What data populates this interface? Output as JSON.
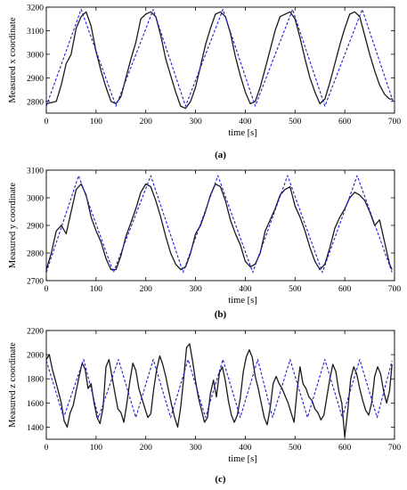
{
  "colors": {
    "measured": "#1a1a1a",
    "reference": "#1f1fd6"
  },
  "chart_data": [
    {
      "type": "line",
      "panel_label": "(a)",
      "xlabel": "time [s]",
      "ylabel": "Measured x coordinate",
      "xlim": [
        0,
        700
      ],
      "ylim": [
        2750,
        3200
      ],
      "xticks": [
        0,
        100,
        200,
        300,
        400,
        500,
        600,
        700
      ],
      "yticks": [
        2800,
        2900,
        3000,
        3100,
        3200
      ],
      "grid": false,
      "series": [
        {
          "style": "solid",
          "color": "#1a1a1a",
          "x": [
            0,
            10,
            20,
            30,
            40,
            50,
            60,
            70,
            80,
            90,
            100,
            110,
            120,
            130,
            140,
            150,
            160,
            170,
            180,
            190,
            200,
            210,
            220,
            230,
            240,
            250,
            260,
            270,
            280,
            290,
            300,
            310,
            320,
            330,
            340,
            350,
            360,
            370,
            380,
            390,
            400,
            410,
            420,
            430,
            440,
            450,
            460,
            470,
            480,
            490,
            500,
            510,
            520,
            530,
            540,
            550,
            560,
            570,
            580,
            590,
            600,
            610,
            620,
            630,
            640,
            650,
            660,
            670,
            680,
            690,
            697
          ],
          "y": [
            2790,
            2795,
            2800,
            2870,
            2960,
            3000,
            3110,
            3160,
            3180,
            3120,
            3010,
            2930,
            2860,
            2800,
            2790,
            2820,
            2900,
            2980,
            3050,
            3150,
            3170,
            3180,
            3160,
            3080,
            2980,
            2910,
            2840,
            2780,
            2770,
            2800,
            2860,
            2950,
            3040,
            3110,
            3170,
            3180,
            3160,
            3090,
            2990,
            2910,
            2840,
            2790,
            2800,
            2860,
            2940,
            3020,
            3100,
            3160,
            3170,
            3180,
            3150,
            3070,
            2980,
            2900,
            2840,
            2790,
            2810,
            2880,
            2960,
            3040,
            3110,
            3170,
            3180,
            3160,
            3080,
            3000,
            2930,
            2870,
            2830,
            2810,
            2810
          ]
        },
        {
          "style": "dashed",
          "color": "#1f1fd6",
          "x": [
            0,
            70,
            140,
            215,
            280,
            355,
            420,
            495,
            560,
            635,
            697
          ],
          "y": [
            2780,
            3190,
            2780,
            3190,
            2780,
            3190,
            2780,
            3190,
            2780,
            3190,
            2800
          ]
        }
      ]
    },
    {
      "type": "line",
      "panel_label": "(b)",
      "xlabel": "time [s]",
      "ylabel": "Measured y coordinate",
      "xlim": [
        0,
        700
      ],
      "ylim": [
        2700,
        3100
      ],
      "xticks": [
        0,
        100,
        200,
        300,
        400,
        500,
        600,
        700
      ],
      "yticks": [
        2700,
        2800,
        2900,
        3000,
        3100
      ],
      "grid": false,
      "series": [
        {
          "style": "solid",
          "color": "#1a1a1a",
          "x": [
            0,
            10,
            20,
            30,
            40,
            50,
            60,
            70,
            80,
            90,
            100,
            110,
            120,
            130,
            140,
            150,
            160,
            170,
            180,
            190,
            200,
            210,
            220,
            230,
            240,
            250,
            260,
            270,
            280,
            290,
            300,
            310,
            320,
            330,
            340,
            350,
            360,
            370,
            380,
            390,
            400,
            410,
            420,
            430,
            440,
            450,
            460,
            470,
            480,
            490,
            500,
            510,
            520,
            530,
            540,
            550,
            560,
            570,
            580,
            590,
            600,
            610,
            620,
            630,
            640,
            650,
            660,
            670,
            680,
            690,
            695
          ],
          "y": [
            2740,
            2800,
            2880,
            2900,
            2870,
            2950,
            3030,
            3050,
            3010,
            2930,
            2880,
            2840,
            2780,
            2740,
            2740,
            2790,
            2860,
            2910,
            2960,
            3020,
            3050,
            3040,
            2990,
            2930,
            2860,
            2800,
            2760,
            2740,
            2750,
            2800,
            2870,
            2900,
            2950,
            3010,
            3050,
            3040,
            2990,
            2920,
            2870,
            2830,
            2770,
            2750,
            2760,
            2800,
            2880,
            2920,
            2960,
            3010,
            3030,
            3040,
            2970,
            2930,
            2880,
            2820,
            2770,
            2740,
            2760,
            2820,
            2890,
            2930,
            2960,
            3000,
            3020,
            3010,
            2990,
            2950,
            2900,
            2920,
            2840,
            2760,
            2740
          ]
        },
        {
          "style": "dashed",
          "color": "#1f1fd6",
          "x": [
            0,
            65,
            135,
            210,
            275,
            345,
            415,
            485,
            555,
            625,
            695
          ],
          "y": [
            2730,
            3080,
            2730,
            3080,
            2730,
            3080,
            2730,
            3080,
            2730,
            3080,
            2730
          ]
        }
      ]
    },
    {
      "type": "line",
      "panel_label": "(c)",
      "xlabel": "time [s]",
      "ylabel": "Measured z coordinate",
      "xlim": [
        0,
        700
      ],
      "ylim": [
        1300,
        2200
      ],
      "xticks": [
        0,
        100,
        200,
        300,
        400,
        500,
        600,
        700
      ],
      "yticks": [
        1400,
        1600,
        1800,
        2000,
        2200
      ],
      "grid": false,
      "series": [
        {
          "style": "solid",
          "color": "#1a1a1a",
          "x": [
            0,
            6,
            12,
            18,
            24,
            30,
            36,
            42,
            48,
            54,
            60,
            66,
            72,
            78,
            84,
            90,
            96,
            102,
            108,
            114,
            120,
            126,
            132,
            138,
            144,
            150,
            156,
            162,
            168,
            174,
            180,
            186,
            192,
            198,
            204,
            210,
            216,
            222,
            228,
            234,
            240,
            246,
            252,
            258,
            264,
            270,
            276,
            282,
            288,
            294,
            300,
            306,
            312,
            318,
            324,
            330,
            336,
            342,
            348,
            354,
            360,
            366,
            372,
            378,
            384,
            390,
            396,
            402,
            408,
            414,
            420,
            426,
            432,
            438,
            444,
            450,
            456,
            462,
            468,
            474,
            480,
            486,
            492,
            498,
            504,
            510,
            516,
            522,
            528,
            534,
            540,
            546,
            552,
            558,
            564,
            570,
            576,
            582,
            588,
            594,
            600,
            606,
            612,
            618,
            624,
            630,
            636,
            642,
            648,
            654,
            660,
            666,
            672,
            678,
            684,
            690,
            695
          ],
          "y": [
            1960,
            2000,
            1880,
            1790,
            1700,
            1600,
            1450,
            1400,
            1520,
            1580,
            1700,
            1820,
            1930,
            1880,
            1720,
            1760,
            1600,
            1480,
            1430,
            1560,
            1900,
            1960,
            1820,
            1680,
            1550,
            1520,
            1440,
            1600,
            1780,
            1930,
            1870,
            1720,
            1640,
            1560,
            1480,
            1510,
            1720,
            1880,
            1990,
            1920,
            1820,
            1700,
            1580,
            1480,
            1400,
            1560,
            1800,
            2060,
            2090,
            1950,
            1780,
            1640,
            1540,
            1440,
            1480,
            1680,
            1790,
            1650,
            1850,
            1900,
            1780,
            1620,
            1500,
            1440,
            1500,
            1640,
            1860,
            1980,
            2040,
            1980,
            1820,
            1720,
            1600,
            1480,
            1420,
            1560,
            1760,
            1820,
            1760,
            1720,
            1660,
            1600,
            1520,
            1440,
            1700,
            1900,
            1760,
            1720,
            1650,
            1620,
            1550,
            1520,
            1460,
            1500,
            1650,
            1800,
            1920,
            1860,
            1700,
            1600,
            1320,
            1540,
            1800,
            1900,
            1840,
            1720,
            1620,
            1540,
            1500,
            1600,
            1820,
            1900,
            1840,
            1700,
            1600,
            1700,
            1920
          ]
        },
        {
          "style": "dashed",
          "color": "#1f1fd6",
          "x": [
            0,
            35,
            75,
            105,
            145,
            180,
            215,
            250,
            285,
            320,
            355,
            390,
            425,
            455,
            490,
            525,
            560,
            595,
            630,
            665,
            695
          ],
          "y": [
            1950,
            1480,
            1960,
            1480,
            1960,
            1480,
            1960,
            1480,
            1960,
            1480,
            1960,
            1480,
            1960,
            1480,
            1960,
            1480,
            1960,
            1480,
            1960,
            1480,
            1950
          ]
        }
      ]
    }
  ]
}
